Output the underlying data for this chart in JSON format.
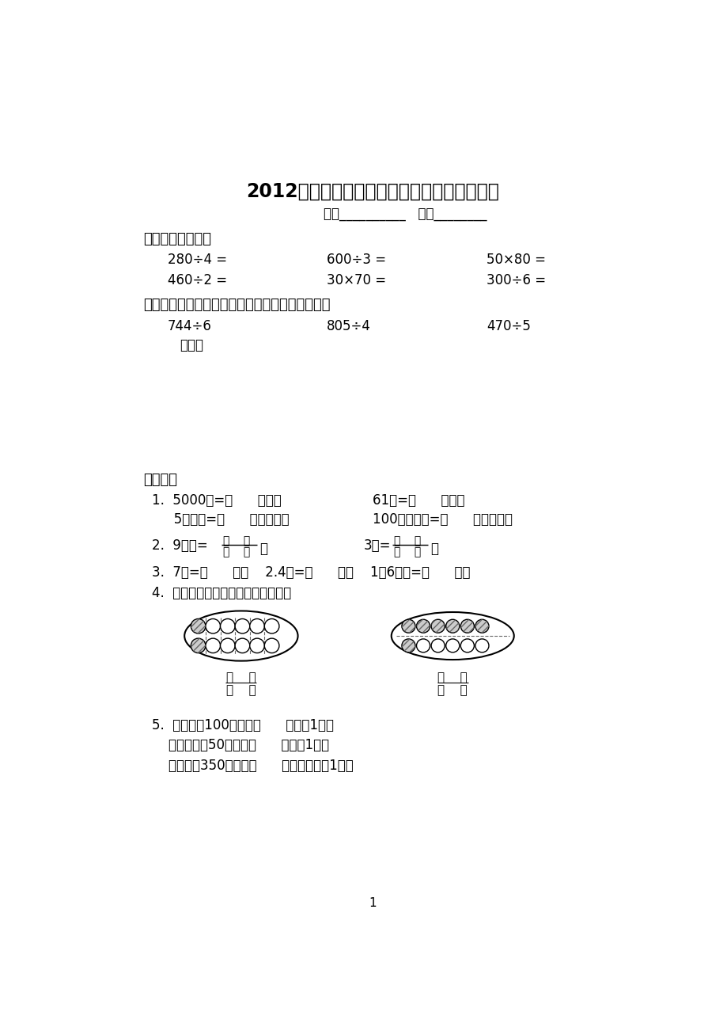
{
  "title": "2012年苏教版数学三年级（下册）期末调查卷",
  "name_label": "姓名__________   成绩________",
  "s1_header": "一、口算下面各题",
  "s1r1": [
    "280÷4 =",
    "600÷3 =",
    "50×80 ="
  ],
  "s1r2": [
    "460÷2 =",
    "30×70 =",
    "300÷6 ="
  ],
  "s2_header": "二、用竖式计算（左起第一竖行要写出验算过程）",
  "s2r1": [
    "744÷6",
    "805÷4",
    "470÷5"
  ],
  "s2_verify": "验算：",
  "s3_header": "三、填空",
  "f1a": "1.  5000米=（      ）千米",
  "f1b": "61吞=（      ）千克",
  "f1c": "   5平方米=（      ）平方厘米",
  "f1d": "100平方厘米=（      ）平方分米",
  "f2_pre": "2.  9分米=",
  "f2_unit": "米",
  "f2b_pre": "3角=",
  "f2b_unit": "元",
  "f3": "3.  7角=（      ）元    2.4元=（      ）角    1米6分米=（      ）米",
  "f4_label": "4.  用分数表示各个图里的涂色部分。",
  "f5a": "5.  一桶油重100千克，（      ）桶重1吞；",
  "f5b": "    一袋面粉重50千克，（      ）袋重1吞；",
  "f5c": "    一头牛重350千克，（      ）头牛大约重1吞。",
  "page_num": "1",
  "bg_color": "#ffffff"
}
